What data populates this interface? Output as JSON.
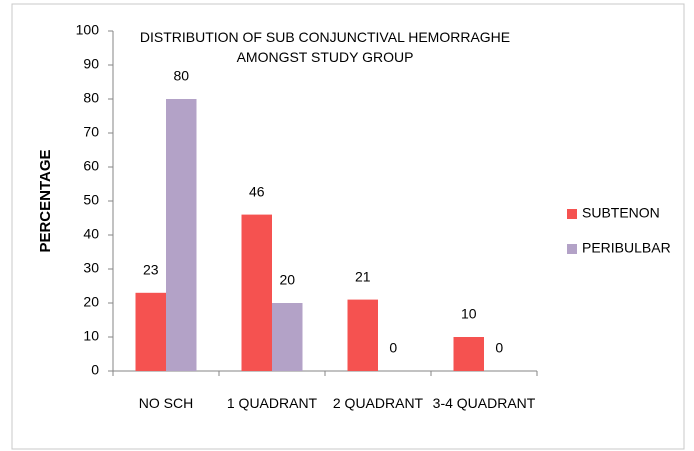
{
  "chart_data": {
    "type": "bar",
    "title": "DISTRIBUTION OF SUB CONJUNCTIVAL HEMORRAGHE AMONGST STUDY GROUP",
    "y_label": "PERCENTAGE",
    "categories": [
      "NO SCH",
      "1 QUADRANT",
      "2 QUADRANT",
      "3-4 QUADRANT"
    ],
    "series": [
      {
        "name": "SUBTENON",
        "color": "#f55250",
        "values": [
          23,
          46,
          21,
          10
        ]
      },
      {
        "name": "PERIBULBAR",
        "color": "#b3a2c7",
        "values": [
          80,
          20,
          0,
          0
        ]
      }
    ],
    "ylim": [
      0,
      100
    ],
    "yticks": [
      0,
      10,
      20,
      30,
      40,
      50,
      60,
      70,
      80,
      90,
      100
    ],
    "grid": false,
    "legend": "right"
  }
}
